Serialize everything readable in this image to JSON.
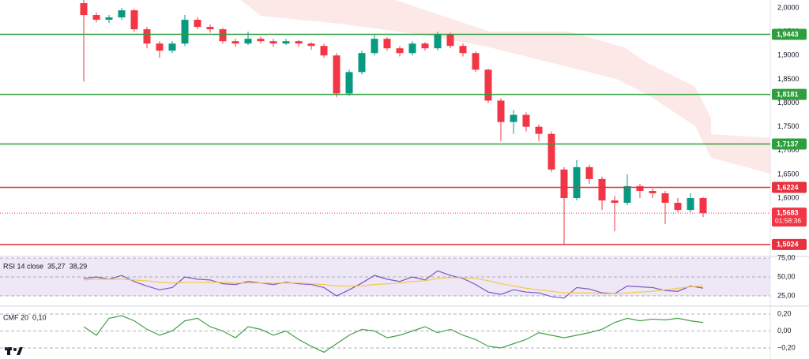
{
  "chart_data": [
    {
      "type": "candlestick",
      "yscale_side": "right",
      "ylim": [
        1.4772,
        2.0166
      ],
      "yticks": [
        {
          "value": 2.0,
          "label": "2,0000"
        },
        {
          "value": 1.95,
          "label": "1,9500"
        },
        {
          "value": 1.9,
          "label": "1,9000"
        },
        {
          "value": 1.85,
          "label": "1,8500"
        },
        {
          "value": 1.8,
          "label": "1,8000"
        },
        {
          "value": 1.75,
          "label": "1,7500"
        },
        {
          "value": 1.7,
          "label": "1,7000"
        },
        {
          "value": 1.65,
          "label": "1,6500"
        },
        {
          "value": 1.6,
          "label": "1,6000"
        }
      ],
      "up_color": "#089981",
      "down_color": "#f23645",
      "open": [
        2.01,
        1.985,
        1.975,
        1.98,
        1.995,
        1.955,
        1.925,
        1.91,
        1.925,
        1.975,
        1.96,
        1.955,
        1.93,
        1.925,
        1.935,
        1.93,
        1.925,
        1.93,
        1.925,
        1.92,
        1.9,
        1.82,
        1.865,
        1.905,
        1.935,
        1.915,
        1.905,
        1.925,
        1.915,
        1.945,
        1.92,
        1.905,
        1.87,
        1.805,
        1.76,
        1.775,
        1.75,
        1.735,
        1.66,
        1.6,
        1.665,
        1.64,
        1.595,
        1.59,
        1.625,
        1.615,
        1.61,
        1.59,
        1.575,
        1.6
      ],
      "high": [
        2.02,
        1.99,
        1.985,
        2.0,
        1.998,
        1.96,
        1.93,
        1.93,
        1.985,
        1.98,
        1.965,
        1.958,
        1.935,
        1.95,
        1.94,
        1.935,
        1.935,
        1.932,
        1.928,
        1.925,
        1.905,
        1.87,
        1.91,
        1.945,
        1.938,
        1.92,
        1.93,
        1.928,
        1.95,
        1.948,
        1.925,
        1.908,
        1.872,
        1.81,
        1.785,
        1.78,
        1.755,
        1.74,
        1.665,
        1.68,
        1.67,
        1.645,
        1.605,
        1.65,
        1.63,
        1.62,
        1.615,
        1.6,
        1.61,
        1.602
      ],
      "low": [
        1.845,
        1.97,
        1.968,
        1.975,
        1.95,
        1.915,
        1.895,
        1.905,
        1.92,
        1.955,
        1.948,
        1.925,
        1.918,
        1.922,
        1.925,
        1.918,
        1.922,
        1.918,
        1.912,
        1.895,
        1.812,
        1.815,
        1.86,
        1.9,
        1.91,
        1.898,
        1.9,
        1.91,
        1.91,
        1.915,
        1.898,
        1.865,
        1.8,
        1.72,
        1.735,
        1.74,
        1.72,
        1.655,
        1.502,
        1.595,
        1.63,
        1.575,
        1.53,
        1.585,
        1.6,
        1.6,
        1.545,
        1.57,
        1.57,
        1.56
      ],
      "close": [
        1.985,
        1.975,
        1.98,
        1.995,
        1.955,
        1.925,
        1.91,
        1.925,
        1.975,
        1.96,
        1.955,
        1.93,
        1.925,
        1.935,
        1.93,
        1.925,
        1.93,
        1.925,
        1.92,
        1.9,
        1.82,
        1.865,
        1.905,
        1.935,
        1.915,
        1.905,
        1.925,
        1.915,
        1.945,
        1.92,
        1.905,
        1.87,
        1.805,
        1.76,
        1.775,
        1.75,
        1.735,
        1.66,
        1.6,
        1.665,
        1.64,
        1.595,
        1.59,
        1.625,
        1.615,
        1.61,
        1.59,
        1.575,
        1.6,
        1.5683
      ],
      "levels": [
        {
          "value": 1.9443,
          "label": "1,9443",
          "color": "#2e9e3e"
        },
        {
          "value": 1.8181,
          "label": "1,8181",
          "color": "#2e9e3e"
        },
        {
          "value": 1.7137,
          "label": "1,7137",
          "color": "#2e9e3e"
        },
        {
          "value": 1.6224,
          "label": "1,6224",
          "color": "#e5323e"
        },
        {
          "value": 1.5024,
          "label": "1,5024",
          "color": "#e5323e"
        }
      ],
      "last_price": {
        "value": 1.5683,
        "label": "1,5683",
        "countdown": "01:58:36",
        "color": "#f23645"
      }
    },
    {
      "type": "line",
      "title": "RSI 14 close",
      "legend": [
        "35,27",
        "38,29"
      ],
      "ylim": [
        20,
        80
      ],
      "yticks": [
        {
          "value": 75,
          "label": "75,00"
        },
        {
          "value": 50,
          "label": "50,00"
        },
        {
          "value": 25,
          "label": "25,00"
        }
      ],
      "band": [
        25,
        75
      ],
      "band_color": "#ede7f6",
      "series": [
        {
          "color": "#7e57c2",
          "values": [
            48,
            50,
            47,
            52,
            44,
            38,
            33,
            36,
            50,
            47,
            46,
            41,
            40,
            44,
            42,
            40,
            43,
            41,
            40,
            36,
            25,
            33,
            42,
            52,
            47,
            44,
            50,
            46,
            58,
            52,
            48,
            40,
            30,
            27,
            33,
            30,
            29,
            24,
            22,
            36,
            34,
            29,
            28,
            38,
            37,
            36,
            32,
            31,
            38,
            35.27
          ]
        },
        {
          "color": "#f7c948",
          "values": [
            46,
            47,
            47,
            47,
            46,
            45,
            43,
            42,
            43,
            43,
            43,
            43,
            42,
            42,
            42,
            42,
            42,
            42,
            41,
            40,
            38,
            38,
            38,
            40,
            41,
            42,
            44,
            45,
            48,
            49,
            49,
            48,
            45,
            41,
            38,
            35,
            33,
            31,
            29,
            29,
            29,
            28,
            28,
            29,
            30,
            31,
            33,
            35,
            37,
            38.29
          ]
        }
      ]
    },
    {
      "type": "line",
      "title": "CMF 20",
      "legend": [
        "0,10"
      ],
      "ylim": [
        -0.3,
        0.3
      ],
      "yticks": [
        {
          "value": 0.2,
          "label": "0,20"
        },
        {
          "value": 0,
          "label": "0,00"
        },
        {
          "value": -0.2,
          "label": "−0,20"
        }
      ],
      "series": [
        {
          "color": "#43a047",
          "values": [
            0.05,
            -0.05,
            0.15,
            0.18,
            0.12,
            0.02,
            -0.05,
            0.0,
            0.12,
            0.15,
            0.05,
            0.0,
            -0.08,
            0.05,
            0.02,
            -0.05,
            0.0,
            -0.1,
            -0.18,
            -0.25,
            -0.15,
            -0.05,
            0.02,
            0.0,
            -0.08,
            -0.05,
            0.0,
            0.05,
            -0.02,
            0.02,
            -0.05,
            -0.1,
            -0.18,
            -0.2,
            -0.15,
            -0.1,
            -0.02,
            -0.05,
            -0.08,
            -0.05,
            -0.02,
            0.02,
            0.1,
            0.15,
            0.12,
            0.14,
            0.13,
            0.15,
            0.12,
            0.1
          ]
        }
      ]
    }
  ]
}
